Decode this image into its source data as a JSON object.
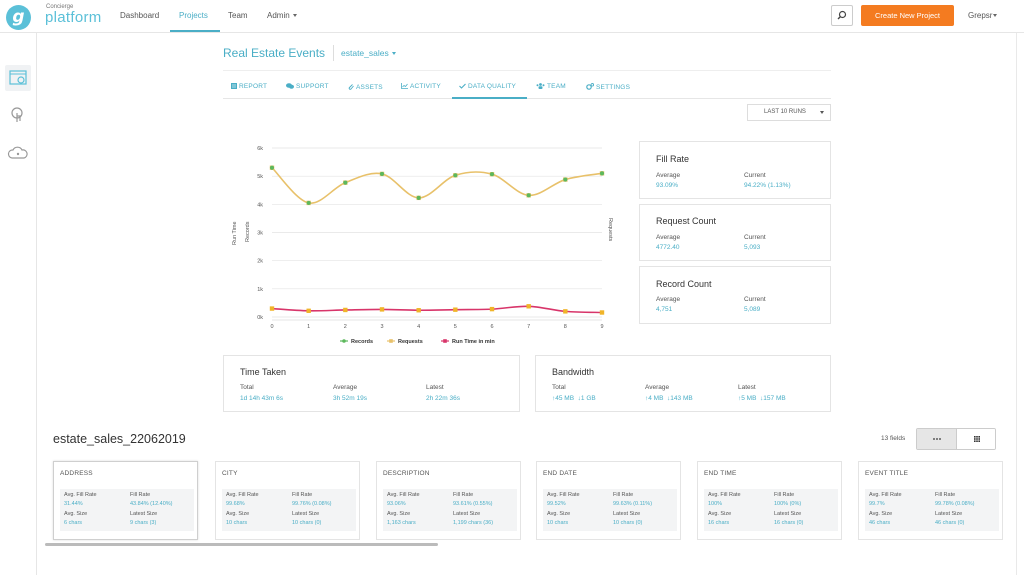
{
  "brand": {
    "logo_letter": "g",
    "small": "Concierge",
    "big": "platform"
  },
  "nav": {
    "items": [
      "Dashboard",
      "Projects",
      "Team",
      "Admin"
    ],
    "active": "Projects"
  },
  "header": {
    "create_button": "Create New Project",
    "user": "Grepsr"
  },
  "project": {
    "title": "Real Estate Events",
    "selector": "estate_sales"
  },
  "tabs": [
    "REPORT",
    "SUPPORT",
    "ASSETS",
    "ACTIVITY",
    "DATA QUALITY",
    "TEAM",
    "SETTINGS"
  ],
  "runs_select": "LAST 10 RUNS",
  "chart_data": {
    "type": "line",
    "x": [
      0,
      1,
      2,
      3,
      4,
      5,
      6,
      7,
      8,
      9
    ],
    "y_ticks": [
      "0k",
      "1k",
      "2k",
      "3k",
      "4k",
      "5k",
      "6k"
    ],
    "ylim": [
      0,
      6000
    ],
    "ylabel_left_1": "Run Time",
    "ylabel_left_2": "Records",
    "ylabel_right": "Requests",
    "legend_position": "bottom",
    "series": [
      {
        "name": "Records",
        "color": "#5cb85c",
        "values": [
          5300,
          4050,
          4770,
          5080,
          4230,
          5030,
          5070,
          4320,
          4880,
          5100
        ]
      },
      {
        "name": "Requests",
        "color": "#e8c16a",
        "values": [
          5300,
          4050,
          4770,
          5080,
          4230,
          5030,
          5070,
          4320,
          4880,
          5100
        ]
      },
      {
        "name": "Run Time in min",
        "color": "#d8356a",
        "values": [
          300,
          220,
          250,
          270,
          240,
          260,
          280,
          380,
          200,
          160
        ]
      }
    ]
  },
  "stats": {
    "fill_rate": {
      "title": "Fill Rate",
      "avg_label": "Average",
      "avg": "93.09%",
      "cur_label": "Current",
      "cur": "94.22% (1.13%)"
    },
    "request_count": {
      "title": "Request Count",
      "avg_label": "Average",
      "avg": "4772.40",
      "cur_label": "Current",
      "cur": "5,093"
    },
    "record_count": {
      "title": "Record Count",
      "avg_label": "Average",
      "avg": "4,751",
      "cur_label": "Current",
      "cur": "5,089"
    }
  },
  "time_taken": {
    "title": "Time Taken",
    "total_label": "Total",
    "total": "1d 14h 43m 6s",
    "avg_label": "Average",
    "avg": "3h 52m 19s",
    "latest_label": "Latest",
    "latest": "2h 22m 36s"
  },
  "bandwidth": {
    "title": "Bandwidth",
    "total_label": "Total",
    "total_up": "45 MB",
    "total_down": "1 GB",
    "avg_label": "Average",
    "avg_up": "4 MB",
    "avg_down": "143 MB",
    "latest_label": "Latest",
    "latest_up": "5 MB",
    "latest_down": "157 MB"
  },
  "dataset": {
    "title": "estate_sales_22062019",
    "fields_count": "13 fields"
  },
  "field_labels": {
    "avg_fill": "Avg. Fill Rate",
    "fill": "Fill Rate",
    "avg_size": "Avg. Size",
    "latest_size": "Latest Size"
  },
  "fields": [
    {
      "name": "ADDRESS",
      "avg_fill": "31.44%",
      "fill": "43.84% (12.40%)",
      "avg_size": "6 chars",
      "latest_size": "9 chars (3)"
    },
    {
      "name": "CITY",
      "avg_fill": "99.68%",
      "fill": "99.76% (0.08%)",
      "avg_size": "10 chars",
      "latest_size": "10 chars (0)"
    },
    {
      "name": "DESCRIPTION",
      "avg_fill": "93.06%",
      "fill": "93.61% (0.55%)",
      "avg_size": "1,163 chars",
      "latest_size": "1,199 chars (36)"
    },
    {
      "name": "END DATE",
      "avg_fill": "99.52%",
      "fill": "99.63% (0.11%)",
      "avg_size": "10 chars",
      "latest_size": "10 chars (0)"
    },
    {
      "name": "END TIME",
      "avg_fill": "100%",
      "fill": "100% (0%)",
      "avg_size": "16 chars",
      "latest_size": "16 chars (0)"
    },
    {
      "name": "EVENT TITLE",
      "avg_fill": "99.7%",
      "fill": "99.78% (0.08%)",
      "avg_size": "46 chars",
      "latest_size": "46 chars (0)"
    }
  ]
}
